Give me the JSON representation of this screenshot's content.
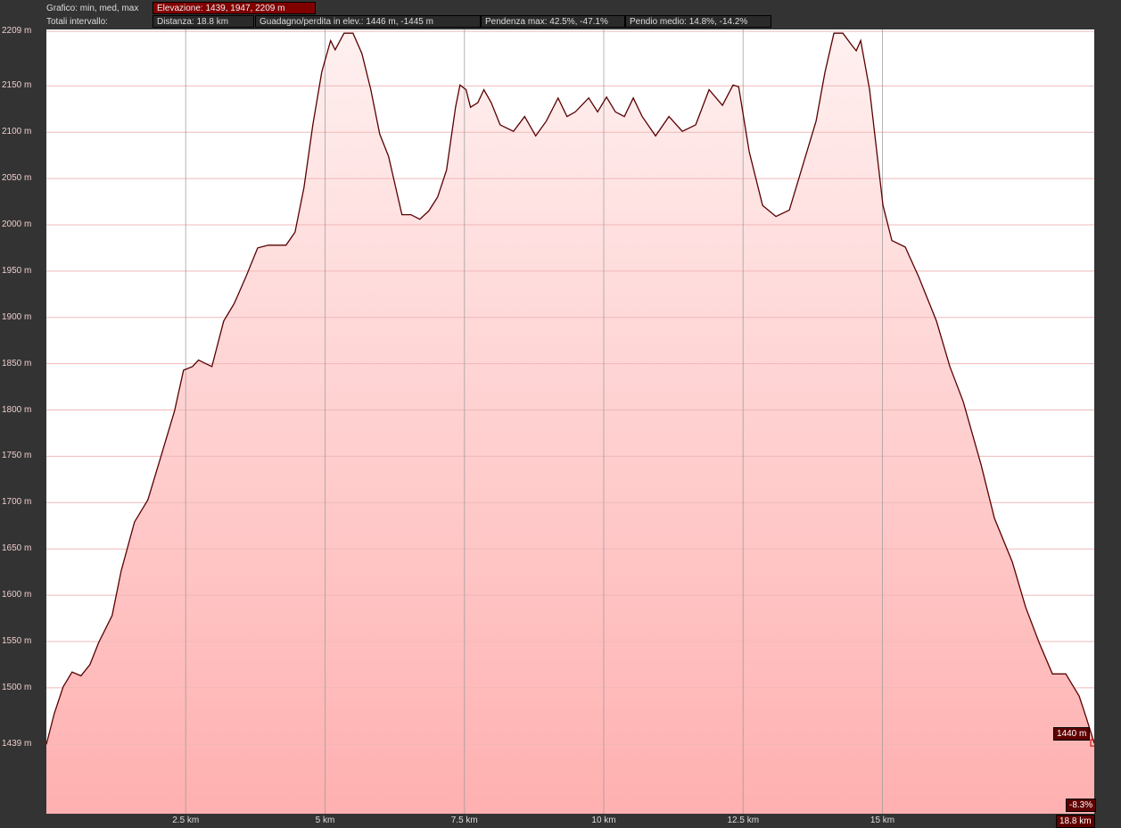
{
  "header": {
    "chart_label": "Grafico: min, med, max",
    "elevation": "Elevazione: 1439, 1947, 2209 m",
    "totals_label": "Totali intervallo:",
    "distance": "Distanza: 18.8 km",
    "gain_loss": "Guadagno/perdita in elev.: 1446 m, -1445 m",
    "max_slope": "Pendenza max: 42.5%, -47.1%",
    "avg_slope": "Pendio medio: 14.8%, -14.2%"
  },
  "cursor": {
    "elevation": "1440 m",
    "slope": "-8.3%",
    "distance": "18.8 km"
  },
  "colors": {
    "line": "#5a0000",
    "fill_top": "#fff0f0",
    "fill_bottom": "#ffb0b0",
    "accent": "#800000"
  },
  "chart_data": {
    "type": "area",
    "xlabel": "",
    "ylabel": "",
    "xlim": [
      0,
      18.8
    ],
    "ylim": [
      1364,
      2211
    ],
    "grid": true,
    "x_ticks": [
      2.5,
      5,
      7.5,
      10,
      12.5,
      15
    ],
    "x_tick_labels": [
      "2.5 km",
      "5 km",
      "7.5 km",
      "10 km",
      "12.5 km",
      "15 km"
    ],
    "y_ticks": [
      2209,
      2150,
      2100,
      2050,
      2000,
      1950,
      1900,
      1850,
      1800,
      1750,
      1700,
      1650,
      1600,
      1550,
      1500,
      1439
    ],
    "y_tick_labels": [
      "2209 m",
      "2150 m",
      "2100 m",
      "2050 m",
      "2000 m",
      "1950 m",
      "1900 m",
      "1850 m",
      "1800 m",
      "1750 m",
      "1700 m",
      "1650 m",
      "1600 m",
      "1550 m",
      "1500 m",
      "1439 m"
    ],
    "x": [
      0,
      0.14,
      0.3,
      0.46,
      0.62,
      0.78,
      0.94,
      1.18,
      1.34,
      1.58,
      1.82,
      2.06,
      2.3,
      2.46,
      2.62,
      2.73,
      2.86,
      2.97,
      3.18,
      3.37,
      3.58,
      3.79,
      3.98,
      4.3,
      4.46,
      4.62,
      4.78,
      4.94,
      5.1,
      5.18,
      5.34,
      5.5,
      5.66,
      5.82,
      5.98,
      6.14,
      6.38,
      6.54,
      6.7,
      6.86,
      7.02,
      7.18,
      7.34,
      7.42,
      7.53,
      7.61,
      7.74,
      7.85,
      7.98,
      8.14,
      8.38,
      8.58,
      8.78,
      8.97,
      9.18,
      9.34,
      9.49,
      9.73,
      9.89,
      10.05,
      10.21,
      10.37,
      10.53,
      10.69,
      10.93,
      11.17,
      11.41,
      11.65,
      11.89,
      12.13,
      12.32,
      12.42,
      12.61,
      12.85,
      13.09,
      13.33,
      13.57,
      13.81,
      13.97,
      14.13,
      14.29,
      14.45,
      14.53,
      14.61,
      14.77,
      15.01,
      15.17,
      15.41,
      15.65,
      15.97,
      16.21,
      16.45,
      16.77,
      17.01,
      17.33,
      17.57,
      17.81,
      18.05,
      18.29,
      18.53,
      18.66,
      18.8
    ],
    "y": [
      1439,
      1472,
      1501,
      1517,
      1513,
      1525,
      1549,
      1578,
      1626,
      1679,
      1703,
      1751,
      1799,
      1843,
      1847,
      1854,
      1850,
      1847,
      1896,
      1915,
      1944,
      1975,
      1978,
      1978,
      1992,
      2040,
      2108,
      2165,
      2199,
      2189,
      2207,
      2207,
      2185,
      2146,
      2098,
      2074,
      2011,
      2011,
      2006,
      2015,
      2030,
      2059,
      2127,
      2151,
      2146,
      2127,
      2132,
      2146,
      2132,
      2108,
      2101,
      2117,
      2096,
      2112,
      2137,
      2117,
      2122,
      2137,
      2122,
      2138,
      2122,
      2117,
      2137,
      2117,
      2096,
      2117,
      2101,
      2108,
      2146,
      2129,
      2151,
      2149,
      2079,
      2021,
      2009,
      2016,
      2064,
      2112,
      2165,
      2207,
      2207,
      2194,
      2188,
      2199,
      2146,
      2021,
      1983,
      1976,
      1944,
      1896,
      1847,
      1809,
      1741,
      1683,
      1636,
      1587,
      1549,
      1515,
      1515,
      1491,
      1467,
      1440
    ]
  }
}
